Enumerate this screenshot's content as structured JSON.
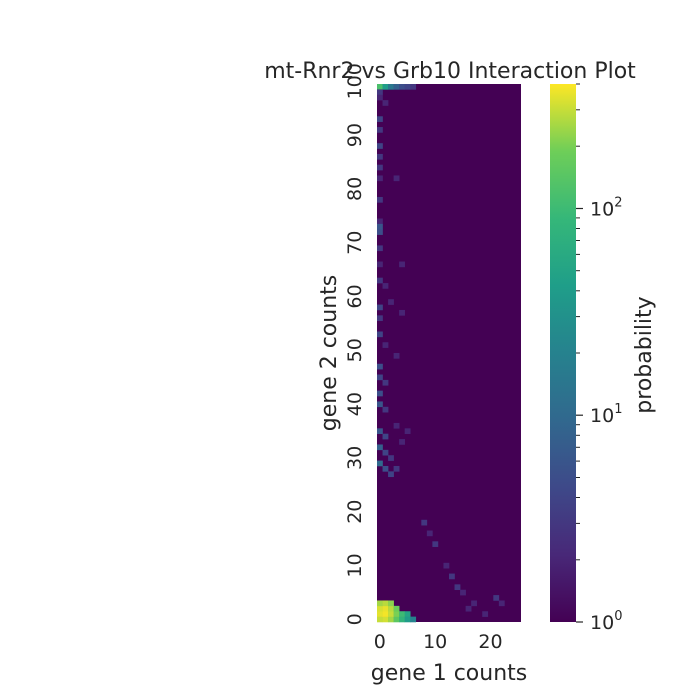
{
  "chart_data": {
    "type": "heatmap",
    "title": "mt-Rnr2 vs Grb10 Interaction Plot",
    "xlabel": "gene 1 counts",
    "ylabel": "gene 2 counts",
    "colorbar_label": "probability",
    "colormap": "viridis",
    "color_scale": "log",
    "color_range": [
      1,
      400
    ],
    "x_range": [
      0,
      26
    ],
    "y_range": [
      0,
      100
    ],
    "x_ticks": [
      "0",
      "10",
      "20"
    ],
    "x_tick_values": [
      0,
      10,
      20
    ],
    "y_ticks": [
      "0",
      "10",
      "20",
      "30",
      "40",
      "50",
      "60",
      "70",
      "80",
      "90",
      "100"
    ],
    "y_tick_values": [
      0,
      10,
      20,
      30,
      40,
      50,
      60,
      70,
      80,
      90,
      100
    ],
    "colorbar_ticks": [
      {
        "base": "10",
        "exp": "0",
        "value": 1
      },
      {
        "base": "10",
        "exp": "1",
        "value": 10
      },
      {
        "base": "10",
        "exp": "2",
        "value": 100
      }
    ],
    "grid": false,
    "cells": [
      {
        "x": 0,
        "y": 0,
        "v": 300
      },
      {
        "x": 1,
        "y": 0,
        "v": 320
      },
      {
        "x": 2,
        "y": 0,
        "v": 250
      },
      {
        "x": 3,
        "y": 0,
        "v": 150
      },
      {
        "x": 4,
        "y": 0,
        "v": 80
      },
      {
        "x": 5,
        "y": 0,
        "v": 40
      },
      {
        "x": 6,
        "y": 0,
        "v": 20
      },
      {
        "x": 0,
        "y": 1,
        "v": 350
      },
      {
        "x": 1,
        "y": 1,
        "v": 380
      },
      {
        "x": 2,
        "y": 1,
        "v": 300
      },
      {
        "x": 3,
        "y": 1,
        "v": 200
      },
      {
        "x": 4,
        "y": 1,
        "v": 100
      },
      {
        "x": 5,
        "y": 1,
        "v": 50
      },
      {
        "x": 0,
        "y": 2,
        "v": 330
      },
      {
        "x": 1,
        "y": 2,
        "v": 360
      },
      {
        "x": 2,
        "y": 2,
        "v": 280
      },
      {
        "x": 3,
        "y": 2,
        "v": 180
      },
      {
        "x": 0,
        "y": 3,
        "v": 250
      },
      {
        "x": 1,
        "y": 3,
        "v": 280
      },
      {
        "x": 2,
        "y": 3,
        "v": 220
      },
      {
        "x": 16,
        "y": 2,
        "v": 2
      },
      {
        "x": 17,
        "y": 3,
        "v": 2
      },
      {
        "x": 19,
        "y": 1,
        "v": 2
      },
      {
        "x": 21,
        "y": 4,
        "v": 3
      },
      {
        "x": 22,
        "y": 3,
        "v": 2
      },
      {
        "x": 14,
        "y": 6,
        "v": 3
      },
      {
        "x": 15,
        "y": 5,
        "v": 2
      },
      {
        "x": 13,
        "y": 8,
        "v": 3
      },
      {
        "x": 12,
        "y": 10,
        "v": 2
      },
      {
        "x": 10,
        "y": 14,
        "v": 3
      },
      {
        "x": 9,
        "y": 16,
        "v": 2
      },
      {
        "x": 8,
        "y": 18,
        "v": 3
      },
      {
        "x": 0,
        "y": 99,
        "v": 120
      },
      {
        "x": 1,
        "y": 99,
        "v": 40
      },
      {
        "x": 2,
        "y": 99,
        "v": 15
      },
      {
        "x": 3,
        "y": 99,
        "v": 8
      },
      {
        "x": 4,
        "y": 99,
        "v": 5
      },
      {
        "x": 5,
        "y": 99,
        "v": 4
      },
      {
        "x": 6,
        "y": 99,
        "v": 3
      },
      {
        "x": 0,
        "y": 98,
        "v": 3
      },
      {
        "x": 0,
        "y": 97,
        "v": 2
      },
      {
        "x": 1,
        "y": 96,
        "v": 2
      },
      {
        "x": 0,
        "y": 93,
        "v": 4
      },
      {
        "x": 0,
        "y": 91,
        "v": 3
      },
      {
        "x": 0,
        "y": 88,
        "v": 4
      },
      {
        "x": 0,
        "y": 86,
        "v": 3
      },
      {
        "x": 0,
        "y": 84,
        "v": 3
      },
      {
        "x": 0,
        "y": 82,
        "v": 2
      },
      {
        "x": 3,
        "y": 82,
        "v": 2
      },
      {
        "x": 0,
        "y": 78,
        "v": 3
      },
      {
        "x": 0,
        "y": 74,
        "v": 2
      },
      {
        "x": 0,
        "y": 73,
        "v": 6
      },
      {
        "x": 0,
        "y": 72,
        "v": 5
      },
      {
        "x": 0,
        "y": 69,
        "v": 3
      },
      {
        "x": 0,
        "y": 66,
        "v": 2
      },
      {
        "x": 4,
        "y": 66,
        "v": 2
      },
      {
        "x": 0,
        "y": 63,
        "v": 3
      },
      {
        "x": 1,
        "y": 62,
        "v": 2
      },
      {
        "x": 2,
        "y": 59,
        "v": 2
      },
      {
        "x": 0,
        "y": 58,
        "v": 4
      },
      {
        "x": 4,
        "y": 57,
        "v": 2
      },
      {
        "x": 0,
        "y": 56,
        "v": 3
      },
      {
        "x": 0,
        "y": 53,
        "v": 4
      },
      {
        "x": 1,
        "y": 51,
        "v": 2
      },
      {
        "x": 3,
        "y": 49,
        "v": 2
      },
      {
        "x": 0,
        "y": 47,
        "v": 5
      },
      {
        "x": 0,
        "y": 45,
        "v": 4
      },
      {
        "x": 1,
        "y": 44,
        "v": 3
      },
      {
        "x": 0,
        "y": 42,
        "v": 5
      },
      {
        "x": 0,
        "y": 40,
        "v": 6
      },
      {
        "x": 1,
        "y": 39,
        "v": 3
      },
      {
        "x": 3,
        "y": 36,
        "v": 2
      },
      {
        "x": 0,
        "y": 35,
        "v": 6
      },
      {
        "x": 1,
        "y": 34,
        "v": 4
      },
      {
        "x": 4,
        "y": 33,
        "v": 2
      },
      {
        "x": 5,
        "y": 35,
        "v": 2
      },
      {
        "x": 0,
        "y": 32,
        "v": 8
      },
      {
        "x": 1,
        "y": 31,
        "v": 4
      },
      {
        "x": 2,
        "y": 30,
        "v": 3
      },
      {
        "x": 0,
        "y": 29,
        "v": 10
      },
      {
        "x": 1,
        "y": 28,
        "v": 5
      },
      {
        "x": 3,
        "y": 28,
        "v": 3
      },
      {
        "x": 2,
        "y": 27,
        "v": 4
      }
    ]
  }
}
